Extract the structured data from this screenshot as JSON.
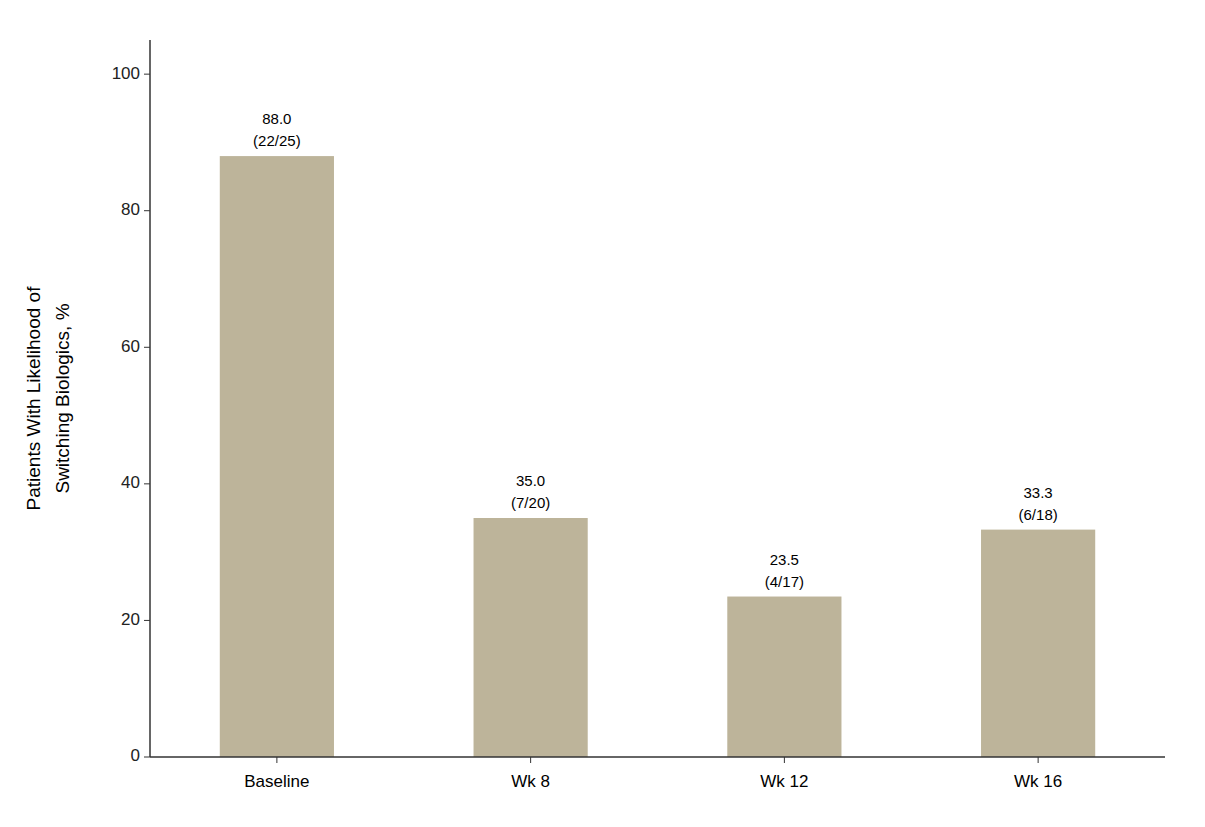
{
  "chart_data": {
    "type": "bar",
    "categories": [
      "Baseline",
      "Wk 8",
      "Wk 12",
      "Wk 16"
    ],
    "values": [
      88.0,
      35.0,
      23.5,
      33.3
    ],
    "value_labels": [
      "88.0",
      "35.0",
      "23.5",
      "33.3"
    ],
    "annotations": [
      "(22/25)",
      "(7/20)",
      "(4/17)",
      "(6/18)"
    ],
    "data_labels": true,
    "color": "#bdb49a",
    "ylabel": "Patients With Likelihood of\nSwitching Biologics, %",
    "ylim": [
      0,
      105
    ],
    "yticks": [
      0,
      20,
      40,
      60,
      80,
      100
    ],
    "grid": false
  }
}
